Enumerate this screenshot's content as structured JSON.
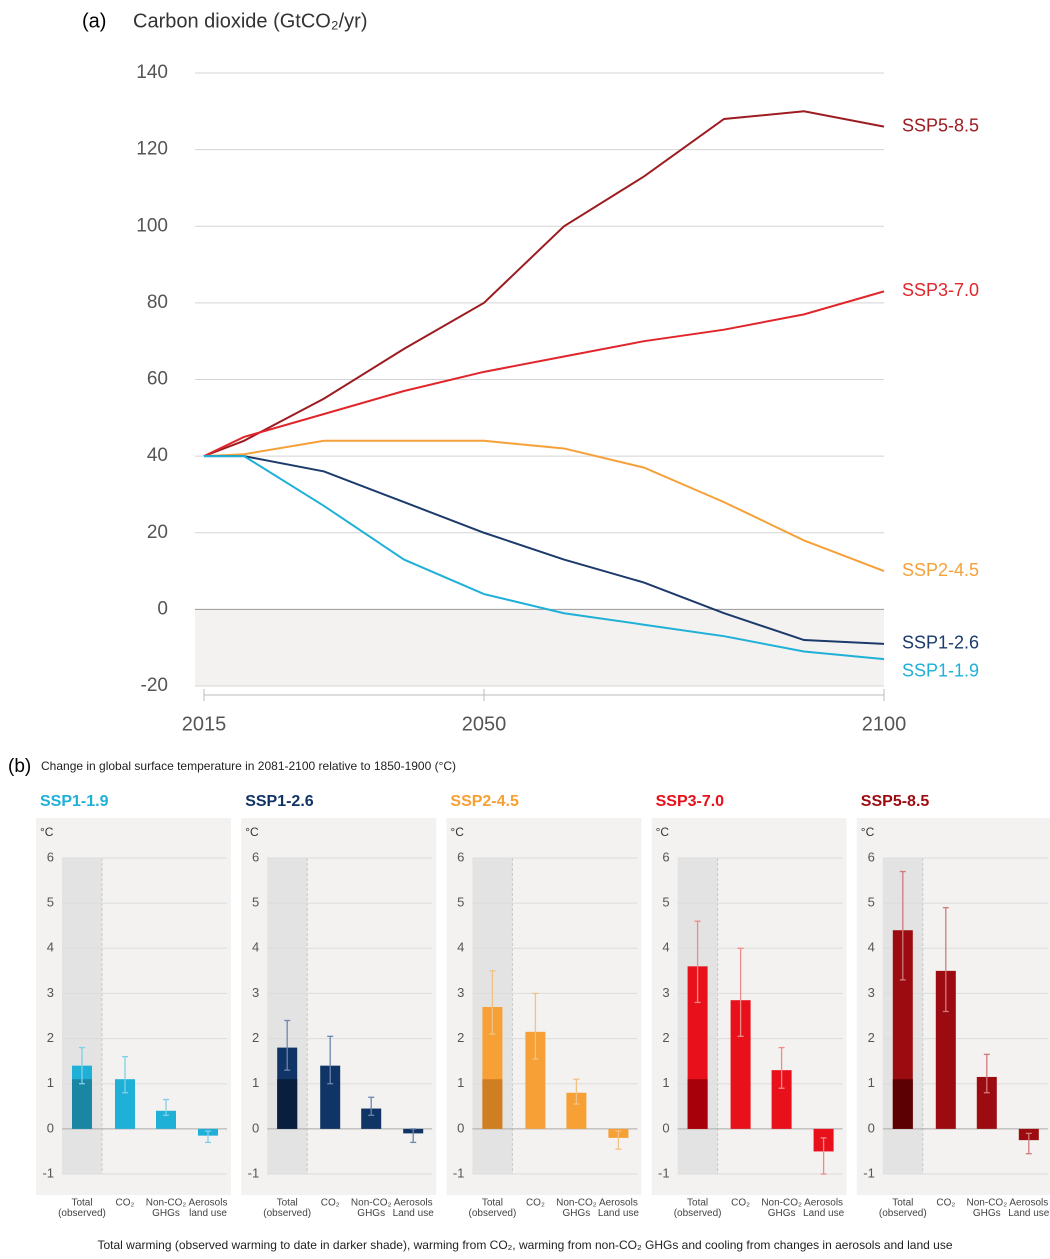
{
  "chart_data": [
    {
      "type": "line",
      "label": "(a)",
      "title": "Carbon dioxide (GtCO₂/yr)",
      "x": [
        2015,
        2020,
        2030,
        2040,
        2050,
        2060,
        2070,
        2080,
        2090,
        2100
      ],
      "xlim": [
        2015,
        2100
      ],
      "xticks": [
        2015,
        2050,
        2100
      ],
      "ylim": [
        -20,
        140
      ],
      "yticks": [
        -20,
        0,
        20,
        40,
        60,
        80,
        100,
        120,
        140
      ],
      "grid": true,
      "series": [
        {
          "name": "SSP5-8.5",
          "color": "#9c1c21",
          "values": [
            40,
            44,
            55,
            68,
            80,
            100,
            113,
            128,
            130,
            126
          ]
        },
        {
          "name": "SSP3-7.0",
          "color": "#e0262b",
          "values": [
            40,
            45,
            51,
            57,
            62,
            66,
            70,
            73,
            77,
            83
          ]
        },
        {
          "name": "SSP2-4.5",
          "color": "#f6a03a",
          "values": [
            40,
            40.5,
            44,
            44,
            44,
            42,
            37,
            28,
            18,
            10
          ]
        },
        {
          "name": "SSP1-2.6",
          "color": "#1c3a6b",
          "values": [
            40,
            40,
            36,
            28,
            20,
            13,
            7,
            -1,
            -8,
            -9
          ]
        },
        {
          "name": "SSP1-1.9",
          "color": "#1fb0d8",
          "values": [
            40,
            40,
            27,
            13,
            4,
            -1,
            -4,
            -7,
            -11,
            -13
          ]
        }
      ]
    },
    {
      "type": "bar",
      "title": "SSP1-1.9",
      "unit": "°C",
      "color": "#1fb0d8",
      "dark_color": "#1a86a3",
      "error_color": "#7fd0e8",
      "categories": [
        [
          "Total",
          "(observed)"
        ],
        [
          "CO₂"
        ],
        [
          "Non-CO₂",
          "GHGs"
        ],
        [
          "Aerosols",
          "land use"
        ]
      ],
      "values": [
        1.4,
        1.1,
        0.4,
        -0.15
      ],
      "low": [
        1.0,
        0.8,
        0.3,
        -0.3
      ],
      "high": [
        1.8,
        1.6,
        0.65,
        -0.05
      ],
      "observed": 1.1,
      "ylim": [
        -1,
        6
      ],
      "yticks": [
        -1,
        0,
        1,
        2,
        3,
        4,
        5,
        6
      ],
      "grid": true
    },
    {
      "type": "bar",
      "title": "SSP1-2.6",
      "unit": "°C",
      "color": "#0f3465",
      "dark_color": "#0a1f3d",
      "error_color": "#6d87ad",
      "categories": [
        [
          "Total",
          "(observed)"
        ],
        [
          "CO₂"
        ],
        [
          "Non-CO₂",
          "GHGs"
        ],
        [
          "Aerosols",
          "Land use"
        ]
      ],
      "values": [
        1.8,
        1.4,
        0.45,
        -0.1
      ],
      "low": [
        1.3,
        1.0,
        0.3,
        -0.3
      ],
      "high": [
        2.4,
        2.05,
        0.7,
        0
      ],
      "observed": 1.1,
      "ylim": [
        -1,
        6
      ],
      "yticks": [
        -1,
        0,
        1,
        2,
        3,
        4,
        5,
        6
      ],
      "grid": true
    },
    {
      "type": "bar",
      "title": "SSP2-4.5",
      "unit": "°C",
      "color": "#f7a035",
      "dark_color": "#cf7f22",
      "error_color": "#f3c185",
      "categories": [
        [
          "Total",
          "(observed)"
        ],
        [
          "CO₂"
        ],
        [
          "Non-CO₂",
          "GHGs"
        ],
        [
          "Aerosols",
          "Land use"
        ]
      ],
      "values": [
        2.7,
        2.15,
        0.8,
        -0.2
      ],
      "low": [
        2.1,
        1.55,
        0.55,
        -0.45
      ],
      "high": [
        3.5,
        3.0,
        1.1,
        -0.05
      ],
      "observed": 1.1,
      "ylim": [
        -1,
        6
      ],
      "yticks": [
        -1,
        0,
        1,
        2,
        3,
        4,
        5,
        6
      ],
      "grid": true
    },
    {
      "type": "bar",
      "title": "SSP3-7.0",
      "unit": "°C",
      "color": "#e8101a",
      "dark_color": "#a8000a",
      "error_color": "#f08a8a",
      "categories": [
        [
          "Total",
          "(observed)"
        ],
        [
          "CO₂"
        ],
        [
          "Non-CO₂",
          "GHGs"
        ],
        [
          "Aerosols",
          "Land use"
        ]
      ],
      "values": [
        3.6,
        2.85,
        1.3,
        -0.5
      ],
      "low": [
        2.8,
        2.05,
        0.9,
        -1.0
      ],
      "high": [
        4.6,
        4.0,
        1.8,
        -0.2
      ],
      "observed": 1.1,
      "ylim": [
        -1,
        6
      ],
      "yticks": [
        -1,
        0,
        1,
        2,
        3,
        4,
        5,
        6
      ],
      "grid": true
    },
    {
      "type": "bar",
      "title": "SSP5-8.5",
      "unit": "°C",
      "color": "#9c0b0f",
      "dark_color": "#5c0004",
      "error_color": "#d07a7c",
      "categories": [
        [
          "Total",
          "(observed)"
        ],
        [
          "CO₂"
        ],
        [
          "Non-CO₂",
          "GHGs"
        ],
        [
          "Aerosols",
          "Land use"
        ]
      ],
      "values": [
        4.4,
        3.5,
        1.15,
        -0.25
      ],
      "low": [
        3.3,
        2.6,
        0.8,
        -0.55
      ],
      "high": [
        5.7,
        4.9,
        1.65,
        -0.1
      ],
      "observed": 1.1,
      "ylim": [
        -1,
        6
      ],
      "yticks": [
        -1,
        0,
        1,
        2,
        3,
        4,
        5,
        6
      ],
      "grid": true
    }
  ],
  "panel_b": {
    "label": "(b)",
    "title": "Change in global surface temperature in 2081-2100 relative to 1850-1900 (°C)",
    "caption": "Total warming (observed warming to date in darker shade), warming from CO₂, warming from non-CO₂ GHGs and cooling from changes in aerosols and land use"
  }
}
